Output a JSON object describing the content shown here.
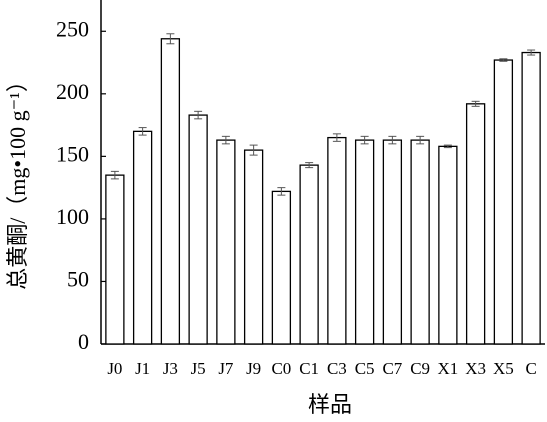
{
  "chart_data": {
    "type": "bar",
    "categories": [
      "J0",
      "J1",
      "J3",
      "J5",
      "J7",
      "J9",
      "C0",
      "C1",
      "C3",
      "C5",
      "C7",
      "C9",
      "X1",
      "X3",
      "X5",
      "C"
    ],
    "values": [
      135,
      170,
      244,
      183,
      163,
      155,
      122,
      143,
      165,
      163,
      163,
      163,
      158,
      192,
      227,
      233
    ],
    "errors": [
      3,
      3,
      4,
      3,
      3,
      4,
      3,
      2,
      3,
      3,
      3,
      3,
      1,
      2,
      1,
      2
    ],
    "color": "#ffffff",
    "x_label": "样品",
    "y_label": "总黄酮/（mg•100 g⁻¹）",
    "ylim": [
      0,
      275
    ],
    "yticks": [
      0,
      50,
      100,
      150,
      200,
      250
    ]
  }
}
